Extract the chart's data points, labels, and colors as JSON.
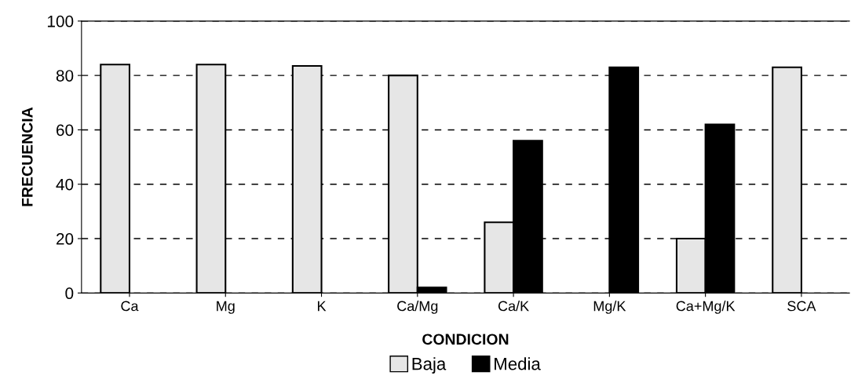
{
  "chart_data": {
    "type": "bar",
    "xlabel": "CONDICION",
    "ylabel": "FRECUENCIA",
    "categories": [
      "Ca",
      "Mg",
      "K",
      "Ca/Mg",
      "Ca/K",
      "Mg/K",
      "Ca+Mg/K",
      "SCA"
    ],
    "series": [
      {
        "name": "Baja",
        "color": "#e6e6e6",
        "values": [
          84,
          84,
          83.5,
          80,
          26,
          null,
          20,
          83
        ]
      },
      {
        "name": "Media",
        "color": "#000000",
        "values": [
          null,
          null,
          null,
          2,
          56,
          83,
          62,
          null
        ]
      }
    ],
    "ylim": [
      0,
      100
    ],
    "yticks": [
      0,
      20,
      40,
      60,
      80,
      100
    ],
    "grid": "y",
    "legend": "bottom"
  }
}
